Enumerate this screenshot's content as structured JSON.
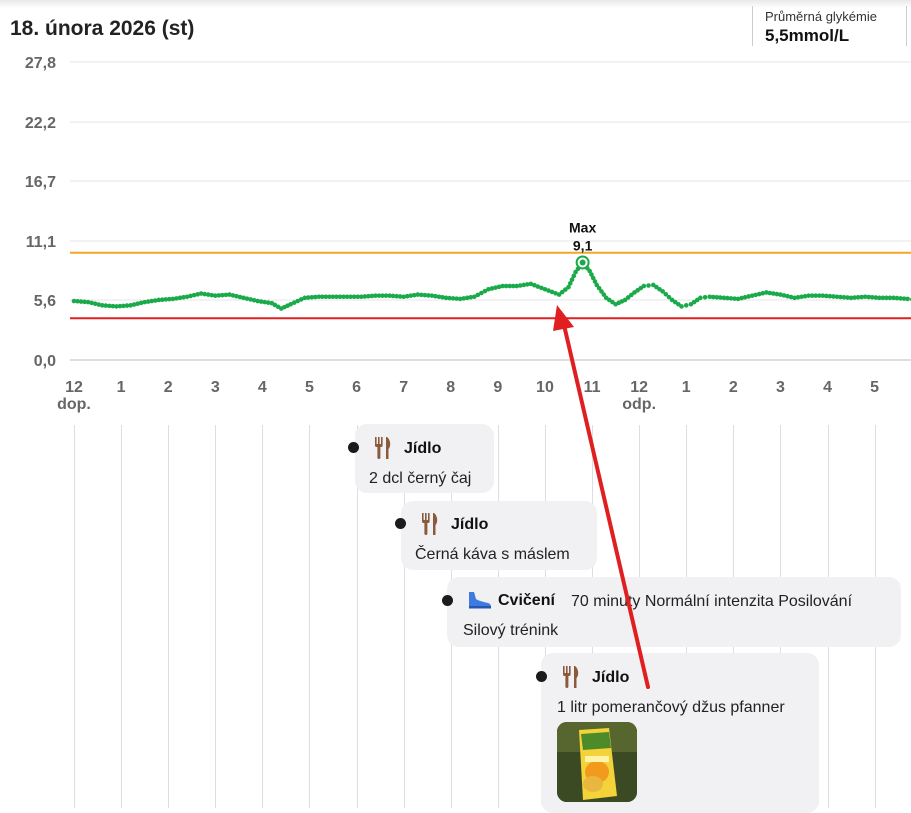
{
  "header": {
    "date": "18. února 2026 (st)",
    "avg_label": "Průměrná glykémie",
    "avg_value": "5,5mmol/L"
  },
  "chart_data": {
    "type": "line",
    "y_ticks": [
      "0,0",
      "5,6",
      "11,1",
      "16,7",
      "22,2",
      "27,8"
    ],
    "ylim": [
      0,
      27.8
    ],
    "x_ticks": [
      "12",
      "1",
      "2",
      "3",
      "4",
      "5",
      "6",
      "7",
      "8",
      "9",
      "10",
      "11",
      "12",
      "1",
      "2",
      "3",
      "4",
      "5"
    ],
    "am_label": "dop.",
    "pm_label": "odp.",
    "xlim": [
      0,
      17.9
    ],
    "thresholds": {
      "high": 10.0,
      "low": 3.9,
      "high_color": "#f5a623",
      "low_color": "#e02020"
    },
    "line_color": "#1aaa4a",
    "max_label": "Max",
    "max_value": "9,1",
    "max_point": {
      "x": 10.8,
      "y": 9.1
    },
    "series": [
      {
        "x": [
          0,
          0.3,
          0.6,
          0.9,
          1.2,
          1.5,
          1.8,
          2.1,
          2.4,
          2.7,
          3.0,
          3.3,
          3.6,
          3.9,
          4.2,
          4.4,
          4.6,
          4.9,
          5.2,
          5.5,
          5.8,
          6.1,
          6.4,
          6.7,
          7.0,
          7.3,
          7.6,
          7.9,
          8.2,
          8.5,
          8.8,
          9.1,
          9.4,
          9.7,
          10.0,
          10.3,
          10.5,
          10.65,
          10.8,
          10.95,
          11.1,
          11.3,
          11.5,
          11.7,
          11.9,
          12.1,
          12.3,
          12.5,
          12.7,
          12.9,
          13.1,
          13.3,
          13.5,
          13.8,
          14.1,
          14.4,
          14.7,
          15.0,
          15.3,
          15.6,
          15.9,
          16.2,
          16.5,
          16.8,
          17.1,
          17.4,
          17.7,
          17.9
        ],
        "y": [
          5.5,
          5.4,
          5.1,
          5.0,
          5.1,
          5.4,
          5.6,
          5.7,
          5.9,
          6.2,
          6.0,
          6.1,
          5.8,
          5.5,
          5.3,
          4.8,
          5.2,
          5.8,
          5.9,
          5.9,
          5.9,
          5.9,
          6.0,
          6.0,
          5.9,
          6.1,
          6.0,
          5.8,
          5.7,
          5.9,
          6.6,
          6.9,
          6.9,
          7.1,
          6.6,
          6.1,
          6.8,
          8.2,
          9.1,
          8.3,
          7.0,
          5.8,
          5.2,
          5.6,
          6.3,
          6.9,
          7.0,
          6.4,
          5.6,
          5.0,
          5.2,
          5.8,
          5.9,
          5.8,
          5.7,
          6.0,
          6.3,
          6.1,
          5.8,
          6.0,
          6.0,
          5.9,
          5.8,
          5.9,
          5.8,
          5.8,
          5.7,
          5.6
        ]
      }
    ]
  },
  "events": [
    {
      "icon": "fork-knife-icon",
      "title": "Jídlo",
      "text": "2 dcl černý čaj"
    },
    {
      "icon": "fork-knife-icon",
      "title": "Jídlo",
      "text": "Černá káva s máslem"
    },
    {
      "icon": "shoe-icon",
      "title": "Cvičení",
      "detail": "70 minuty Normální intenzita Posilování",
      "text": "Silový trénink"
    },
    {
      "icon": "fork-knife-icon",
      "title": "Jídlo",
      "text": "1 litr pomerančový džus pfanner",
      "photo": "juice-carton-photo"
    }
  ],
  "annotation": {
    "arrow_color": "#e02020"
  }
}
